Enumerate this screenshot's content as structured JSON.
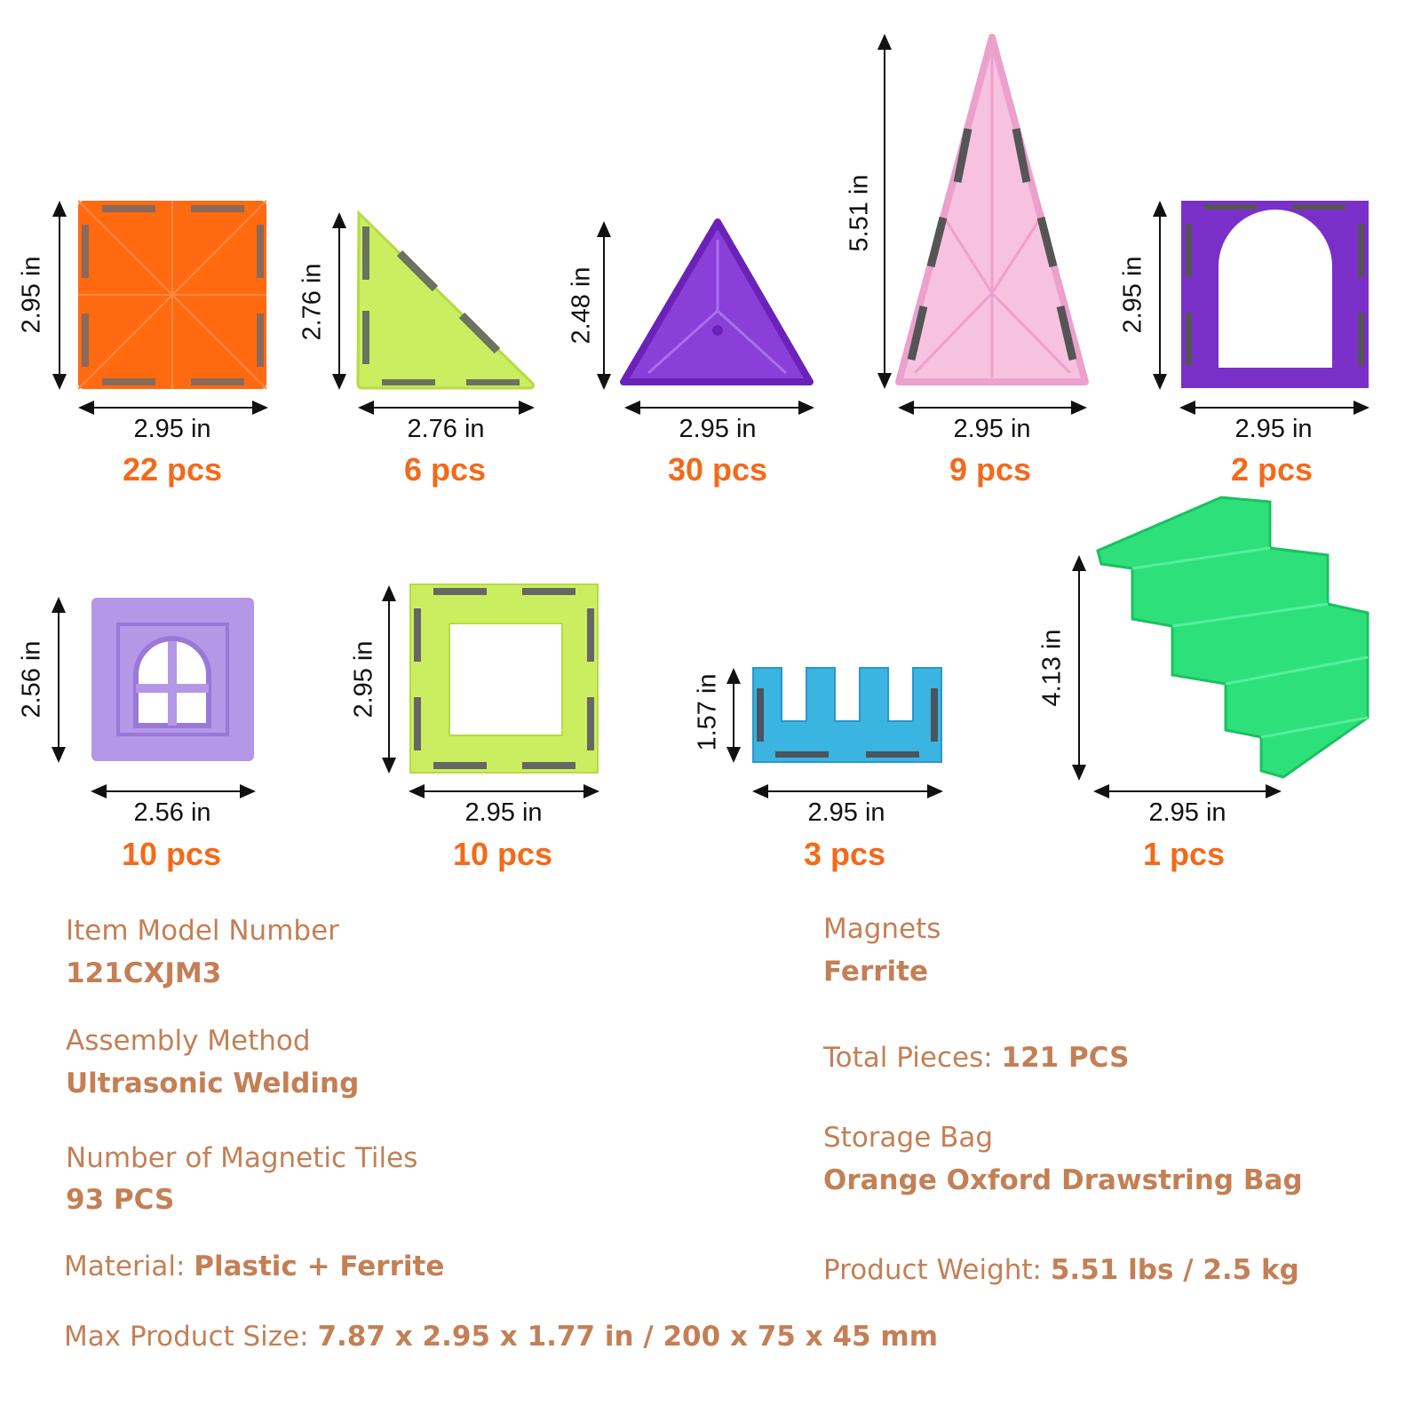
{
  "pieces": [
    {
      "shape": "square",
      "color": "#ff6a10",
      "height": "2.95 in",
      "width": "2.95 in",
      "count": "22 pcs"
    },
    {
      "shape": "right-triangle",
      "color": "#c8ee5a",
      "height": "2.76 in",
      "width": "2.76 in",
      "count": "6 pcs"
    },
    {
      "shape": "equilateral-triangle",
      "color": "#8a3fd8",
      "height": "2.48 in",
      "width": "2.95 in",
      "count": "30 pcs"
    },
    {
      "shape": "tall-triangle",
      "color": "#f5b8dc",
      "height": "5.51 in",
      "width": "2.95 in",
      "count": "9 pcs"
    },
    {
      "shape": "arch",
      "color": "#7a30c8",
      "height": "2.95 in",
      "width": "2.95 in",
      "count": "2 pcs"
    },
    {
      "shape": "window",
      "color": "#b497e6",
      "height": "2.56 in",
      "width": "2.56 in",
      "count": "10 pcs"
    },
    {
      "shape": "square-frame",
      "color": "#c8ee5a",
      "height": "2.95 in",
      "width": "2.95 in",
      "count": "10 pcs"
    },
    {
      "shape": "comb",
      "color": "#3ab4e0",
      "height": "1.57 in",
      "width": "2.95 in",
      "count": "3 pcs"
    },
    {
      "shape": "stairs",
      "color": "#2ee07a",
      "height": "4.13 in",
      "width": "2.95 in",
      "count": "1 pcs"
    }
  ],
  "specs": {
    "model_label": "Item Model Number",
    "model_value": "121CXJM3",
    "assembly_label": "Assembly Method",
    "assembly_value": "Ultrasonic Welding",
    "tiles_label": "Number of Magnetic Tiles",
    "tiles_value": "93 PCS",
    "material_label": "Material: ",
    "material_value": "Plastic + Ferrite",
    "size_label": "Max Product Size: ",
    "size_value": "7.87 x 2.95 x 1.77 in / 200 x 75 x 45 mm",
    "magnets_label": "Magnets",
    "magnets_value": "Ferrite",
    "total_label": "Total Pieces: ",
    "total_value": "121 PCS",
    "bag_label": "Storage Bag",
    "bag_value": "Orange Oxford Drawstring Bag",
    "weight_label": "Product Weight: ",
    "weight_value": "5.51 lbs / 2.5 kg"
  },
  "colors": {
    "count_text": "#f26a1b",
    "spec_text": "#c47f55"
  }
}
